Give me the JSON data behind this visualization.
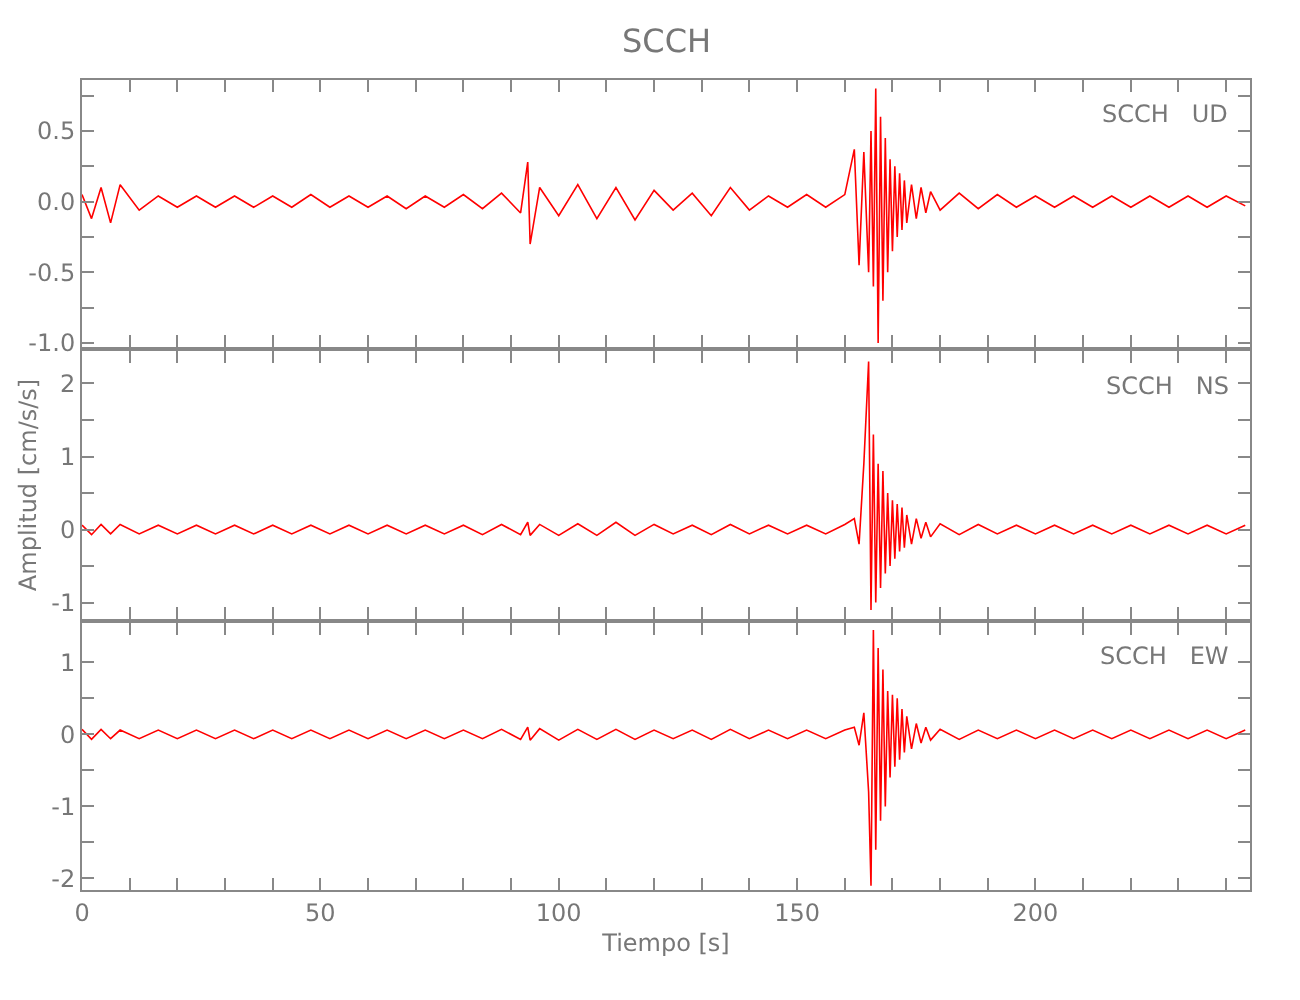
{
  "chart_data": [
    {
      "type": "line",
      "title": "SCCH",
      "annotations": [
        "SCCH   UD"
      ],
      "tick_labels": "y",
      "grid": false,
      "x": [
        0,
        2,
        4,
        6,
        8,
        12,
        16,
        20,
        24,
        28,
        32,
        36,
        40,
        44,
        48,
        52,
        56,
        60,
        64,
        68,
        72,
        76,
        80,
        84,
        88,
        92,
        93.5,
        94,
        96,
        100,
        104,
        108,
        112,
        116,
        120,
        124,
        128,
        132,
        136,
        140,
        144,
        148,
        152,
        156,
        160,
        162,
        163,
        164,
        165,
        165.5,
        166,
        166.5,
        167,
        167.5,
        168,
        168.5,
        169,
        169.5,
        170,
        170.5,
        171,
        171.5,
        172,
        172.5,
        173,
        174,
        175,
        176,
        177,
        178,
        180,
        184,
        188,
        192,
        196,
        200,
        204,
        208,
        212,
        216,
        220,
        224,
        228,
        232,
        236,
        240,
        244
      ],
      "series": [
        {
          "color": "#ff0000",
          "values": [
            0.05,
            -0.12,
            0.1,
            -0.15,
            0.12,
            -0.06,
            0.04,
            -0.04,
            0.04,
            -0.04,
            0.04,
            -0.04,
            0.04,
            -0.04,
            0.05,
            -0.04,
            0.04,
            -0.04,
            0.04,
            -0.05,
            0.04,
            -0.04,
            0.05,
            -0.05,
            0.06,
            -0.08,
            0.28,
            -0.3,
            0.1,
            -0.1,
            0.12,
            -0.12,
            0.1,
            -0.13,
            0.08,
            -0.06,
            0.06,
            -0.1,
            0.1,
            -0.06,
            0.04,
            -0.04,
            0.05,
            -0.04,
            0.05,
            0.37,
            -0.45,
            0.35,
            -0.5,
            0.5,
            -0.6,
            0.8,
            -1.0,
            0.6,
            -0.7,
            0.45,
            -0.5,
            0.3,
            -0.35,
            0.25,
            -0.25,
            0.2,
            -0.2,
            0.15,
            -0.15,
            0.12,
            -0.12,
            0.1,
            -0.08,
            0.07,
            -0.06,
            0.06,
            -0.05,
            0.05,
            -0.04,
            0.04,
            -0.04,
            0.04,
            -0.04,
            0.04,
            -0.04,
            0.04,
            -0.04,
            0.04,
            -0.04,
            0.04,
            -0.03
          ]
        }
      ],
      "xlim": [
        0,
        245
      ],
      "xticks": [
        0,
        {
          "value": 10,
          "label": null
        },
        {
          "value": 20,
          "label": null
        },
        {
          "value": 30,
          "label": null
        },
        {
          "value": 40,
          "label": null
        },
        50,
        {
          "value": 60,
          "label": null
        },
        {
          "value": 70,
          "label": null
        },
        {
          "value": 80,
          "label": null
        },
        {
          "value": 90,
          "label": null
        },
        100,
        {
          "value": 110,
          "label": null
        },
        {
          "value": 120,
          "label": null
        },
        {
          "value": 130,
          "label": null
        },
        {
          "value": 140,
          "label": null
        },
        150,
        {
          "value": 160,
          "label": null
        },
        {
          "value": 170,
          "label": null
        },
        {
          "value": 180,
          "label": null
        },
        {
          "value": 190,
          "label": null
        },
        200,
        {
          "value": 210,
          "label": null
        },
        {
          "value": 220,
          "label": null
        },
        {
          "value": 230,
          "label": null
        },
        {
          "value": 240,
          "label": null
        }
      ],
      "ylim": [
        -1.03,
        0.86
      ],
      "yticks": [
        {
          "value": -1,
          "label": "-1.0"
        },
        {
          "value": -0.75,
          "label": null
        },
        -0.5,
        {
          "value": -0.25,
          "label": null
        },
        {
          "value": 0,
          "label": "0.0"
        },
        {
          "value": 0.25,
          "label": null
        },
        0.5,
        {
          "value": 0.75,
          "label": null
        }
      ]
    },
    {
      "type": "line",
      "ylabel": "Amplitud [cm/s/s]",
      "annotations": [
        "SCCH   NS"
      ],
      "tick_labels": "y",
      "grid": false,
      "x": [
        0,
        2,
        4,
        6,
        8,
        12,
        16,
        20,
        24,
        28,
        32,
        36,
        40,
        44,
        48,
        52,
        56,
        60,
        64,
        68,
        72,
        76,
        80,
        84,
        88,
        92,
        93.5,
        94,
        96,
        100,
        104,
        108,
        112,
        116,
        120,
        124,
        128,
        132,
        136,
        140,
        144,
        148,
        152,
        156,
        160,
        162,
        163,
        164,
        165,
        165.5,
        166,
        166.5,
        167,
        167.5,
        168,
        168.5,
        169,
        169.5,
        170,
        170.5,
        171,
        171.5,
        172,
        172.5,
        173,
        174,
        175,
        176,
        177,
        178,
        180,
        184,
        188,
        192,
        196,
        200,
        204,
        208,
        212,
        216,
        220,
        224,
        228,
        232,
        236,
        240,
        244
      ],
      "series": [
        {
          "color": "#ff0000",
          "values": [
            0.06,
            -0.07,
            0.07,
            -0.06,
            0.07,
            -0.06,
            0.06,
            -0.06,
            0.06,
            -0.06,
            0.06,
            -0.06,
            0.06,
            -0.06,
            0.06,
            -0.06,
            0.06,
            -0.06,
            0.06,
            -0.06,
            0.06,
            -0.06,
            0.06,
            -0.07,
            0.07,
            -0.07,
            0.1,
            -0.08,
            0.07,
            -0.08,
            0.08,
            -0.08,
            0.1,
            -0.08,
            0.07,
            -0.06,
            0.06,
            -0.07,
            0.07,
            -0.06,
            0.06,
            -0.06,
            0.06,
            -0.06,
            0.07,
            0.15,
            -0.2,
            0.9,
            2.3,
            -1.1,
            1.3,
            -1.0,
            0.9,
            -0.8,
            0.8,
            -0.6,
            0.5,
            -0.5,
            0.4,
            -0.4,
            0.35,
            -0.3,
            0.3,
            -0.25,
            0.2,
            -0.2,
            0.15,
            -0.12,
            0.1,
            -0.1,
            0.08,
            -0.07,
            0.07,
            -0.06,
            0.06,
            -0.06,
            0.06,
            -0.06,
            0.06,
            -0.06,
            0.06,
            -0.06,
            0.06,
            -0.06,
            0.06,
            -0.06,
            0.06
          ]
        }
      ],
      "xlim": [
        0,
        245
      ],
      "xticks": [
        0,
        {
          "value": 10,
          "label": null
        },
        {
          "value": 20,
          "label": null
        },
        {
          "value": 30,
          "label": null
        },
        {
          "value": 40,
          "label": null
        },
        50,
        {
          "value": 60,
          "label": null
        },
        {
          "value": 70,
          "label": null
        },
        {
          "value": 80,
          "label": null
        },
        {
          "value": 90,
          "label": null
        },
        100,
        {
          "value": 110,
          "label": null
        },
        {
          "value": 120,
          "label": null
        },
        {
          "value": 130,
          "label": null
        },
        {
          "value": 140,
          "label": null
        },
        150,
        {
          "value": 160,
          "label": null
        },
        {
          "value": 170,
          "label": null
        },
        {
          "value": 180,
          "label": null
        },
        {
          "value": 190,
          "label": null
        },
        200,
        {
          "value": 210,
          "label": null
        },
        {
          "value": 220,
          "label": null
        },
        {
          "value": 230,
          "label": null
        },
        {
          "value": 240,
          "label": null
        }
      ],
      "ylim": [
        -1.22,
        2.44
      ],
      "yticks": [
        -1,
        {
          "value": -0.5,
          "label": null
        },
        0,
        {
          "value": 0.5,
          "label": null
        },
        1,
        {
          "value": 1.5,
          "label": null
        },
        2
      ]
    },
    {
      "type": "line",
      "xlabel": "Tiempo [s]",
      "annotations": [
        "SCCH   EW"
      ],
      "grid": false,
      "x": [
        0,
        2,
        4,
        6,
        8,
        12,
        16,
        20,
        24,
        28,
        32,
        36,
        40,
        44,
        48,
        52,
        56,
        60,
        64,
        68,
        72,
        76,
        80,
        84,
        88,
        92,
        93.5,
        94,
        96,
        100,
        104,
        108,
        112,
        116,
        120,
        124,
        128,
        132,
        136,
        140,
        144,
        148,
        152,
        156,
        160,
        162,
        163,
        164,
        165,
        165.5,
        166,
        166.5,
        167,
        167.5,
        168,
        168.5,
        169,
        169.5,
        170,
        170.5,
        171,
        171.5,
        172,
        172.5,
        173,
        174,
        175,
        176,
        177,
        178,
        180,
        184,
        188,
        192,
        196,
        200,
        204,
        208,
        212,
        216,
        220,
        224,
        228,
        232,
        236,
        240,
        244
      ],
      "series": [
        {
          "color": "#ff0000",
          "values": [
            0.07,
            -0.07,
            0.07,
            -0.06,
            0.06,
            -0.06,
            0.06,
            -0.06,
            0.06,
            -0.06,
            0.06,
            -0.06,
            0.06,
            -0.06,
            0.06,
            -0.06,
            0.06,
            -0.06,
            0.06,
            -0.06,
            0.06,
            -0.06,
            0.06,
            -0.06,
            0.07,
            -0.07,
            0.1,
            -0.08,
            0.08,
            -0.08,
            0.07,
            -0.07,
            0.07,
            -0.07,
            0.06,
            -0.06,
            0.06,
            -0.07,
            0.07,
            -0.06,
            0.06,
            -0.06,
            0.06,
            -0.06,
            0.06,
            0.1,
            -0.15,
            0.3,
            -0.8,
            -2.1,
            1.45,
            -1.6,
            1.2,
            -1.2,
            0.9,
            -1.0,
            0.6,
            -0.6,
            0.55,
            -0.45,
            0.5,
            -0.35,
            0.35,
            -0.25,
            0.25,
            -0.2,
            0.15,
            -0.12,
            0.1,
            -0.08,
            0.07,
            -0.07,
            0.06,
            -0.06,
            0.06,
            -0.06,
            0.06,
            -0.06,
            0.06,
            -0.06,
            0.06,
            -0.06,
            0.06,
            -0.06,
            0.06,
            -0.06,
            0.06
          ]
        }
      ],
      "xlim": [
        0,
        245
      ],
      "xticks": [
        0,
        {
          "value": 10,
          "label": null
        },
        {
          "value": 20,
          "label": null
        },
        {
          "value": 30,
          "label": null
        },
        {
          "value": 40,
          "label": null
        },
        50,
        {
          "value": 60,
          "label": null
        },
        {
          "value": 70,
          "label": null
        },
        {
          "value": 80,
          "label": null
        },
        {
          "value": 90,
          "label": null
        },
        100,
        {
          "value": 110,
          "label": null
        },
        {
          "value": 120,
          "label": null
        },
        {
          "value": 130,
          "label": null
        },
        {
          "value": 140,
          "label": null
        },
        150,
        {
          "value": 160,
          "label": null
        },
        {
          "value": 170,
          "label": null
        },
        {
          "value": 180,
          "label": null
        },
        {
          "value": 190,
          "label": null
        },
        200,
        {
          "value": 210,
          "label": null
        },
        {
          "value": 220,
          "label": null
        },
        {
          "value": 230,
          "label": null
        },
        {
          "value": 240,
          "label": null
        }
      ],
      "ylim": [
        -2.16,
        1.55
      ],
      "yticks": [
        -2,
        {
          "value": -1.5,
          "label": null
        },
        -1,
        {
          "value": -0.5,
          "label": null
        },
        0,
        {
          "value": 0.5,
          "label": null
        },
        1
      ]
    }
  ]
}
